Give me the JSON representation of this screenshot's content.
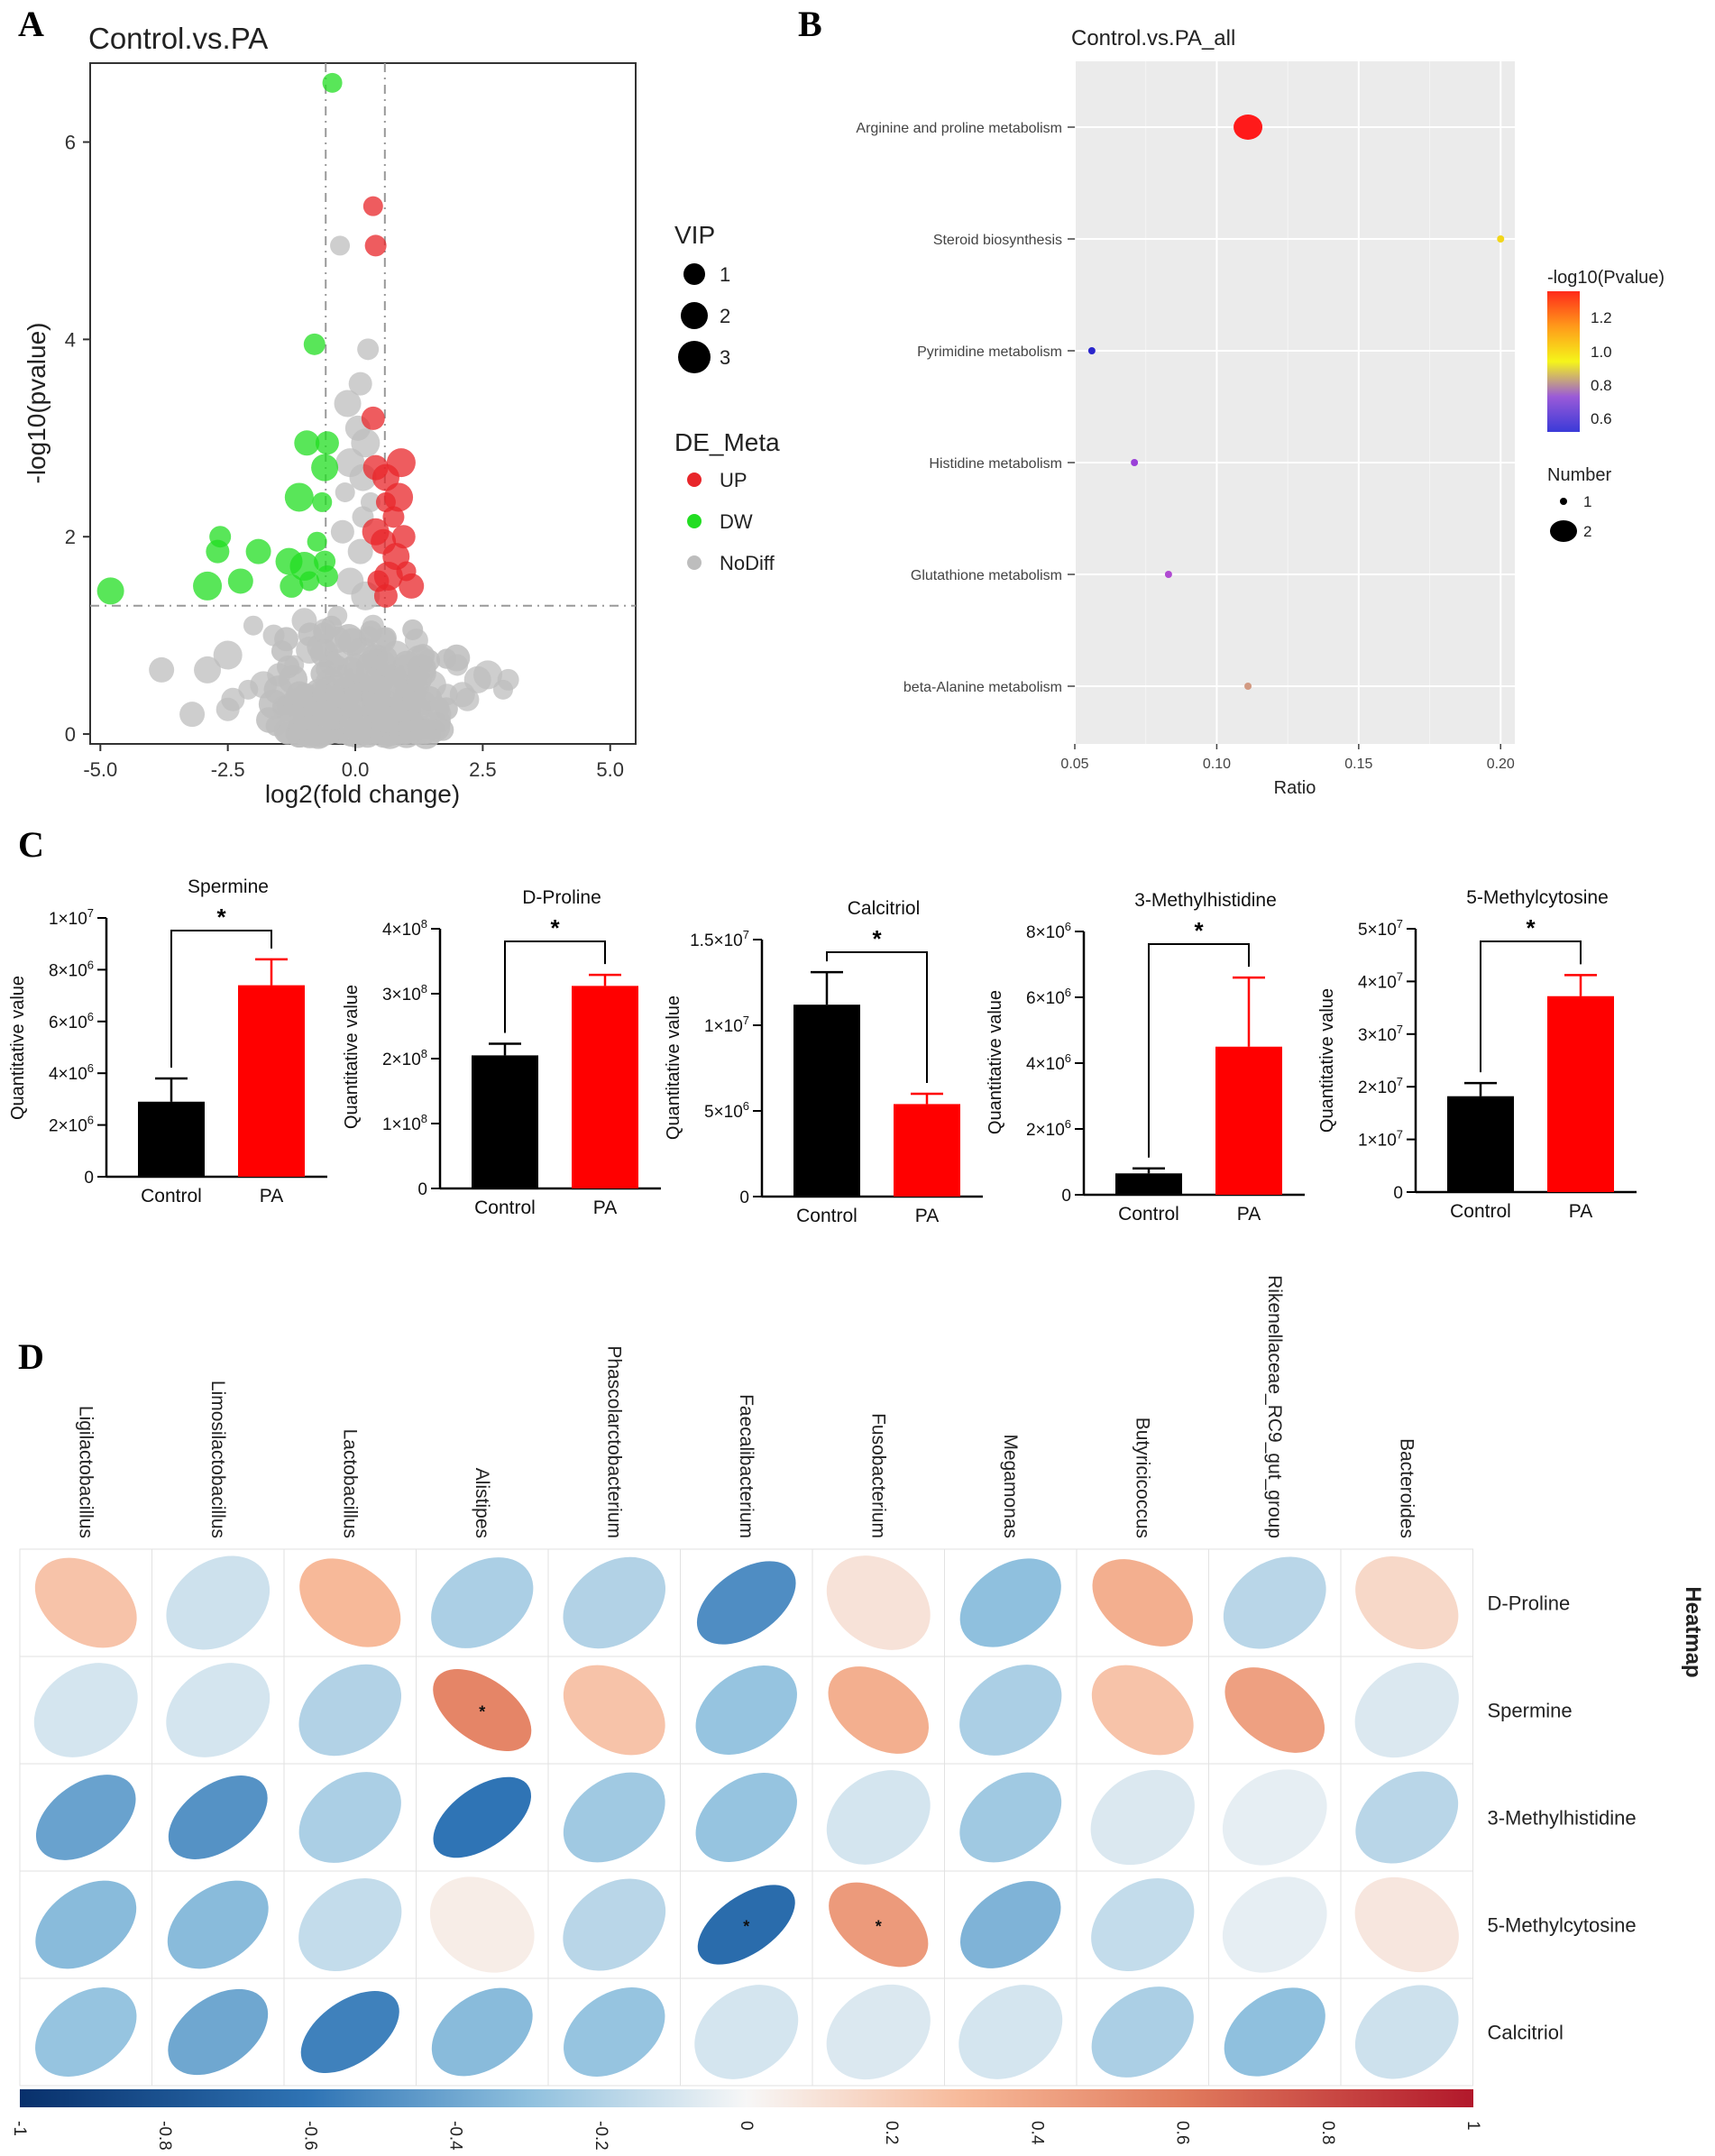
{
  "panels": {
    "A": "A",
    "B": "B",
    "C": "C",
    "D": "D"
  },
  "chart_data": [
    {
      "id": "volcano",
      "type": "scatter",
      "title": "Control.vs.PA",
      "xlabel": "log2(fold change)",
      "ylabel": "-log10(pvalue)",
      "xlim": [
        -5.2,
        5.5
      ],
      "ylim": [
        -0.1,
        6.8
      ],
      "xticks": [
        -5.0,
        -2.5,
        0.0,
        2.5,
        5.0
      ],
      "xtick_labels": [
        "-5.0",
        "-2.5",
        "0.0",
        "2.5",
        "5.0"
      ],
      "yticks": [
        0,
        2,
        4,
        6
      ],
      "ytick_labels": [
        "0",
        "2",
        "4",
        "6"
      ],
      "thresholds": {
        "x": [
          -0.58,
          0.58
        ],
        "y": 1.3
      },
      "legend_vip": {
        "title": "VIP",
        "items": [
          "1",
          "2",
          "3"
        ]
      },
      "legend_group": {
        "title": "DE_Meta",
        "items": [
          {
            "label": "UP",
            "color": "#e8262a"
          },
          {
            "label": "DW",
            "color": "#22dd22"
          },
          {
            "label": "NoDiff",
            "color": "#bdbdbd"
          }
        ]
      },
      "series": [
        {
          "name": "UP",
          "color": "#e8262a",
          "points": [
            [
              0.35,
              5.35
            ],
            [
              0.4,
              4.95
            ],
            [
              0.35,
              3.2
            ],
            [
              0.4,
              2.7
            ],
            [
              0.6,
              2.6
            ],
            [
              0.9,
              2.75
            ],
            [
              0.6,
              2.35
            ],
            [
              0.75,
              2.2
            ],
            [
              0.95,
              2.0
            ],
            [
              0.55,
              1.95
            ],
            [
              0.8,
              1.8
            ],
            [
              0.65,
              1.6
            ],
            [
              1.0,
              1.65
            ],
            [
              0.45,
              1.55
            ],
            [
              0.6,
              1.4
            ],
            [
              1.1,
              1.5
            ],
            [
              0.4,
              2.05
            ],
            [
              0.85,
              2.4
            ]
          ]
        },
        {
          "name": "DW",
          "color": "#22dd22",
          "points": [
            [
              -0.45,
              6.6
            ],
            [
              -0.8,
              3.95
            ],
            [
              -0.55,
              2.95
            ],
            [
              -0.95,
              2.95
            ],
            [
              -0.6,
              2.7
            ],
            [
              -1.1,
              2.4
            ],
            [
              -0.65,
              2.35
            ],
            [
              -2.65,
              2.0
            ],
            [
              -2.7,
              1.85
            ],
            [
              -1.9,
              1.85
            ],
            [
              -1.3,
              1.75
            ],
            [
              -1.0,
              1.7
            ],
            [
              -0.75,
              1.95
            ],
            [
              -0.55,
              1.6
            ],
            [
              -1.25,
              1.5
            ],
            [
              -2.25,
              1.55
            ],
            [
              -4.8,
              1.45
            ],
            [
              -2.9,
              1.5
            ],
            [
              -0.9,
              1.55
            ],
            [
              -0.6,
              1.75
            ]
          ]
        },
        {
          "name": "NoDiff",
          "color": "#bdbdbd",
          "points": [
            [
              -0.3,
              4.95
            ],
            [
              0.25,
              3.9
            ],
            [
              0.1,
              3.55
            ],
            [
              0.05,
              3.1
            ],
            [
              -0.15,
              3.35
            ],
            [
              0.2,
              2.95
            ],
            [
              -0.2,
              2.45
            ],
            [
              0.15,
              2.2
            ],
            [
              -0.25,
              2.05
            ],
            [
              0.1,
              1.85
            ],
            [
              -0.1,
              1.55
            ],
            [
              0.2,
              1.4
            ],
            [
              -0.35,
              1.2
            ],
            [
              0.35,
              1.1
            ],
            [
              -0.6,
              1.05
            ],
            [
              0.55,
              0.95
            ],
            [
              -0.9,
              0.85
            ],
            [
              0.8,
              0.8
            ],
            [
              -1.2,
              0.7
            ],
            [
              1.0,
              0.7
            ],
            [
              -1.5,
              0.6
            ],
            [
              1.25,
              0.55
            ],
            [
              -1.8,
              0.5
            ],
            [
              1.5,
              0.5
            ],
            [
              -2.1,
              0.45
            ],
            [
              1.8,
              0.4
            ],
            [
              -2.4,
              0.35
            ],
            [
              2.1,
              0.4
            ],
            [
              2.4,
              0.55
            ],
            [
              2.6,
              0.6
            ],
            [
              2.9,
              0.45
            ],
            [
              3.0,
              0.55
            ],
            [
              2.2,
              0.35
            ],
            [
              -3.8,
              0.65
            ],
            [
              -2.9,
              0.65
            ],
            [
              -2.5,
              0.8
            ],
            [
              -2.0,
              1.1
            ],
            [
              -1.6,
              1.0
            ],
            [
              -2.5,
              0.25
            ],
            [
              -3.2,
              0.2
            ],
            [
              -0.05,
              0.1
            ],
            [
              0.05,
              0.05
            ],
            [
              -0.4,
              0.4
            ],
            [
              0.4,
              0.3
            ],
            [
              0.0,
              0.7
            ],
            [
              -0.6,
              0.2
            ],
            [
              0.6,
              0.15
            ],
            [
              1.6,
              0.2
            ],
            [
              -1.3,
              0.2
            ],
            [
              2.0,
              0.7
            ],
            [
              1.2,
              0.95
            ],
            [
              -1.0,
              1.15
            ],
            [
              0.15,
              2.6
            ],
            [
              -0.1,
              2.75
            ],
            [
              0.3,
              2.35
            ],
            [
              -0.35,
              0.75
            ],
            [
              0.3,
              0.55
            ]
          ]
        }
      ]
    },
    {
      "id": "pathway",
      "type": "scatter",
      "title": "Control.vs.PA_all",
      "xlabel": "Ratio",
      "xlim": [
        0.05,
        0.205
      ],
      "xticks": [
        0.05,
        0.1,
        0.15,
        0.2
      ],
      "xtick_labels": [
        "0.05",
        "0.10",
        "0.15",
        "0.20"
      ],
      "categories": [
        "Arginine and proline metabolism",
        "Steroid biosynthesis",
        "Pyrimidine metabolism",
        "Histidine metabolism",
        "Glutathione metabolism",
        "beta-Alanine metabolism"
      ],
      "points": [
        {
          "pathway": "Arginine and proline metabolism",
          "ratio": 0.111,
          "neglog10p": 1.35,
          "number": 2,
          "color": "#ff1a1a"
        },
        {
          "pathway": "Steroid biosynthesis",
          "ratio": 0.2,
          "neglog10p": 1.0,
          "number": 1,
          "color": "#f2d61a"
        },
        {
          "pathway": "Pyrimidine metabolism",
          "ratio": 0.056,
          "neglog10p": 0.55,
          "number": 1,
          "color": "#2a26cc"
        },
        {
          "pathway": "Histidine metabolism",
          "ratio": 0.071,
          "neglog10p": 0.65,
          "number": 1,
          "color": "#9a40d8"
        },
        {
          "pathway": "Glutathione metabolism",
          "ratio": 0.083,
          "neglog10p": 0.7,
          "number": 1,
          "color": "#b04ad2"
        },
        {
          "pathway": "beta-Alanine metabolism",
          "ratio": 0.111,
          "neglog10p": 0.85,
          "number": 1,
          "color": "#d29a82"
        }
      ],
      "colorbar": {
        "title": "-log10(Pvalue)",
        "labels": [
          "1.2",
          "1.0",
          "0.8",
          "0.6"
        ],
        "colors": [
          "#ff2a1a",
          "#ff9a1a",
          "#f5f51a",
          "#9a5ad8",
          "#3a3ad8"
        ]
      },
      "size_legend": {
        "title": "Number",
        "items": [
          "1",
          "2"
        ]
      }
    },
    {
      "id": "bar_spermine",
      "type": "bar",
      "title": "Spermine",
      "ylabel": "Quantitative value",
      "categories": [
        "Control",
        "PA"
      ],
      "values": [
        2900000.0,
        7400000.0
      ],
      "errors": [
        900000.0,
        1000000.0
      ],
      "colors": [
        "#000000",
        "#ff0000"
      ],
      "ylim": [
        0,
        10000000.0
      ],
      "yticks": [
        0,
        2000000.0,
        4000000.0,
        6000000.0,
        8000000.0,
        10000000.0
      ],
      "tick_base": [
        "0",
        "2×10",
        "4×10",
        "6×10",
        "8×10",
        "1×10"
      ],
      "tick_exp": [
        "",
        "6",
        "6",
        "6",
        "6",
        "7"
      ],
      "sig": "*"
    },
    {
      "id": "bar_dproline",
      "type": "bar",
      "title": "D-Proline",
      "ylabel": "Quantitative value",
      "categories": [
        "Control",
        "PA"
      ],
      "values": [
        205000000.0,
        312000000.0
      ],
      "errors": [
        18000000.0,
        17000000.0
      ],
      "colors": [
        "#000000",
        "#ff0000"
      ],
      "ylim": [
        0,
        400000000.0
      ],
      "yticks": [
        0,
        100000000.0,
        200000000.0,
        300000000.0,
        400000000.0
      ],
      "tick_base": [
        "0",
        "1×10",
        "2×10",
        "3×10",
        "4×10"
      ],
      "tick_exp": [
        "",
        "8",
        "8",
        "8",
        "8"
      ],
      "sig": "*"
    },
    {
      "id": "bar_calcitriol",
      "type": "bar",
      "title": "Calcitriol",
      "ylabel": "Quantitative value",
      "categories": [
        "Control",
        "PA"
      ],
      "values": [
        11200000.0,
        5400000.0
      ],
      "errors": [
        1900000.0,
        600000.0
      ],
      "colors": [
        "#000000",
        "#ff0000"
      ],
      "ylim": [
        0,
        15000000.0
      ],
      "yticks": [
        0,
        5000000.0,
        10000000.0,
        15000000.0
      ],
      "tick_base": [
        "0",
        "5×10",
        "1×10",
        "1.5×10"
      ],
      "tick_exp": [
        "",
        "6",
        "7",
        "7"
      ],
      "sig": "*"
    },
    {
      "id": "bar_methylhistidine",
      "type": "bar",
      "title": "3-Methylhistidine",
      "ylabel": "Quantitative value",
      "categories": [
        "Control",
        "PA"
      ],
      "values": [
        650000.0,
        4500000.0
      ],
      "errors": [
        150000.0,
        2100000.0
      ],
      "colors": [
        "#000000",
        "#ff0000"
      ],
      "ylim": [
        0,
        8000000.0
      ],
      "yticks": [
        0,
        2000000.0,
        4000000.0,
        6000000.0,
        8000000.0
      ],
      "tick_base": [
        "0",
        "2×10",
        "4×10",
        "6×10",
        "8×10"
      ],
      "tick_exp": [
        "",
        "6",
        "6",
        "6",
        "6"
      ],
      "sig": "*"
    },
    {
      "id": "bar_methylcytosine",
      "type": "bar",
      "title": "5-Methylcytosine",
      "ylabel": "Quantitative value",
      "categories": [
        "Control",
        "PA"
      ],
      "values": [
        18200000.0,
        37200000.0
      ],
      "errors": [
        2500000.0,
        4000000.0
      ],
      "colors": [
        "#000000",
        "#ff0000"
      ],
      "ylim": [
        0,
        50000000.0
      ],
      "yticks": [
        0,
        10000000.0,
        20000000.0,
        30000000.0,
        40000000.0,
        50000000.0
      ],
      "tick_base": [
        "0",
        "1×10",
        "2×10",
        "3×10",
        "4×10",
        "5×10"
      ],
      "tick_exp": [
        "",
        "7",
        "7",
        "7",
        "7",
        "7"
      ],
      "sig": "*"
    },
    {
      "id": "correlation_heatmap",
      "type": "heatmap",
      "title": "Heatmap",
      "columns": [
        "Ligilactobacillus",
        "Limosilactobacillus",
        "Lactobacillus",
        "Alistipes",
        "Phascolarctobacterium",
        "Faecalibacterium",
        "Fusobacterium",
        "Megamonas",
        "Butyricicoccus",
        "Rikenellaceae_RC9_gut_group",
        "Bacteroides"
      ],
      "rows": [
        "D-Proline",
        "Spermine",
        "3-Methylhistidine",
        "5-Methylcytosine",
        "Calcitriol"
      ],
      "values": [
        [
          0.25,
          -0.12,
          0.3,
          -0.22,
          -0.2,
          -0.5,
          0.1,
          -0.3,
          0.35,
          -0.18,
          0.15
        ],
        [
          -0.1,
          -0.1,
          -0.2,
          0.55,
          0.25,
          -0.28,
          0.35,
          -0.22,
          0.25,
          0.42,
          -0.08
        ],
        [
          -0.42,
          -0.48,
          -0.22,
          -0.6,
          -0.25,
          -0.28,
          -0.1,
          -0.25,
          -0.08,
          -0.05,
          -0.18
        ],
        [
          -0.32,
          -0.32,
          -0.15,
          0.05,
          -0.18,
          -0.65,
          0.45,
          -0.35,
          -0.15,
          -0.05,
          0.08
        ],
        [
          -0.28,
          -0.4,
          -0.55,
          -0.32,
          -0.28,
          -0.1,
          -0.08,
          -0.1,
          -0.22,
          -0.3,
          -0.12
        ]
      ],
      "significance": [
        [
          "",
          "",
          "",
          "",
          "",
          "",
          "",
          "",
          "",
          "",
          ""
        ],
        [
          "",
          "",
          "",
          "*",
          "",
          "",
          "",
          "",
          "",
          "",
          ""
        ],
        [
          "",
          "",
          "",
          "",
          "",
          "",
          "",
          "",
          "",
          "",
          ""
        ],
        [
          "",
          "",
          "",
          "",
          "",
          "*",
          "*",
          "",
          "",
          "",
          ""
        ],
        [
          "",
          "",
          "",
          "",
          "",
          "",
          "",
          "",
          "",
          "",
          ""
        ]
      ],
      "scale_ticks": [
        "-1",
        "-0.8",
        "-0.6",
        "-0.4",
        "-0.2",
        "0",
        "0.2",
        "0.4",
        "0.6",
        "0.8",
        "1"
      ],
      "scale_range": [
        -1,
        1
      ]
    }
  ]
}
